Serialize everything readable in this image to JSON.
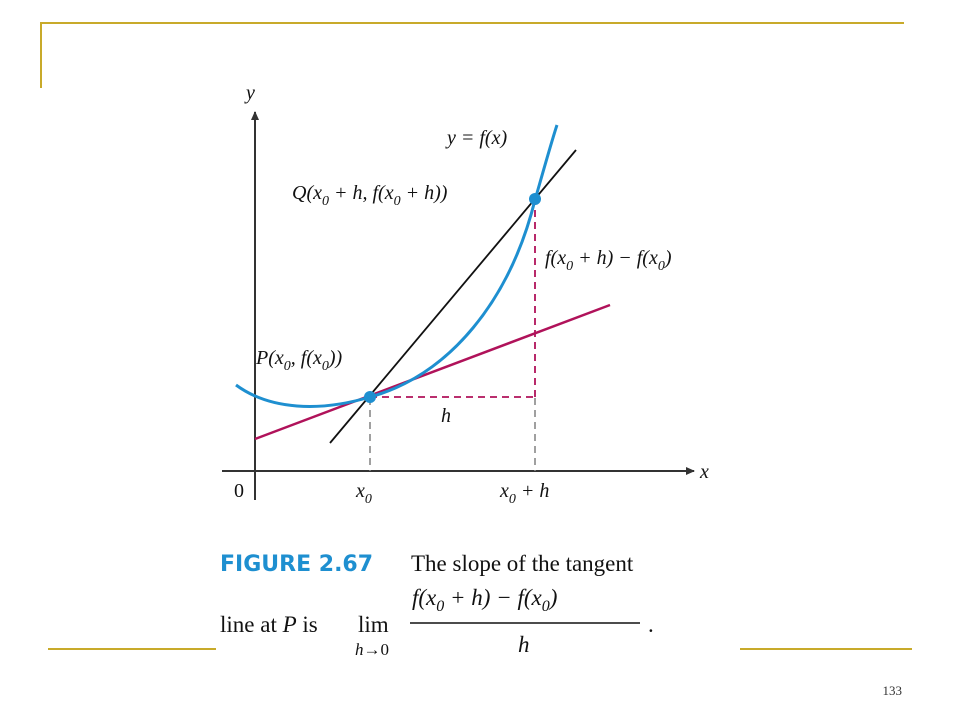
{
  "slide": {
    "page_number": "133",
    "accent_color": "#c8aa2a"
  },
  "figure": {
    "axis_y_label": "y",
    "axis_x_label": "x",
    "origin_label": "0",
    "curve_label": "y = f(x)",
    "point_p_label": "P(x0, f(x0))",
    "point_q_label": "Q(x0 + h, f(x0 + h))",
    "rise_label": "f(x0 + h) − f(x0)",
    "run_label": "h",
    "x0_tick_label": "x0",
    "x0h_tick_label": "x0 + h",
    "colors": {
      "curve": "#1e8fd0",
      "tangent": "#b0125a",
      "secant": "#111111",
      "guides": "#b0125a",
      "dashed": "#888888",
      "points": "#1e8fd0"
    }
  },
  "caption": {
    "figure_number": "FIGURE 2.67",
    "text_line1": "The slope of the tangent",
    "text_line2": "line at P is",
    "limit": "lim",
    "limit_sub": "h→0",
    "numerator": "f(x0 + h) − f(x0)",
    "denominator": "h",
    "end": "."
  }
}
